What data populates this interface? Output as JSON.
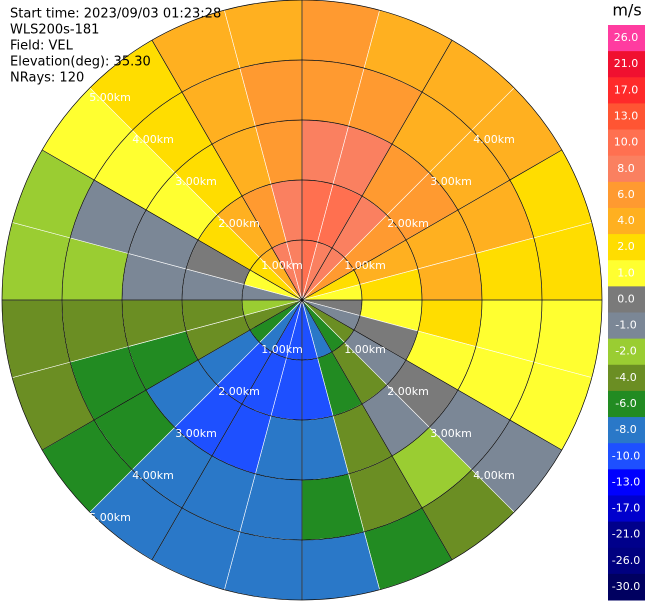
{
  "chart_data": {
    "type": "ppi",
    "header": [
      "Start time: 2023/09/03 01:23:28",
      "WLS200s-181",
      "Field: VEL",
      "Elevation(deg): 35.30",
      "NRays: 120"
    ],
    "azimuths": [
      0,
      15,
      30,
      45,
      60,
      75,
      90,
      105,
      120,
      135,
      150,
      165,
      180,
      195,
      210,
      225,
      240,
      255,
      270,
      285,
      300,
      315,
      330,
      345
    ],
    "ranges_km": [
      0,
      1,
      2,
      3,
      4,
      5
    ],
    "values": [
      [
        10,
        11,
        9,
        7,
        6
      ],
      [
        9,
        10,
        8,
        6,
        5
      ],
      [
        8,
        9,
        7,
        5,
        5
      ],
      [
        6,
        7,
        6,
        5,
        4
      ],
      [
        3,
        5,
        5,
        4,
        3
      ],
      [
        1.5,
        3,
        4,
        3,
        2
      ],
      [
        0.5,
        1.5,
        2,
        1.5,
        1.5
      ],
      [
        -1,
        0.5,
        1.5,
        1,
        1
      ],
      [
        -3,
        -1,
        0.5,
        -0.5,
        -1
      ],
      [
        -5,
        -3,
        -0.5,
        -2,
        -3
      ],
      [
        -8,
        -5,
        -3,
        -4,
        -5
      ],
      [
        -9,
        -9,
        -7,
        -6,
        -7
      ],
      [
        -9,
        -9,
        -8,
        -7,
        -7
      ],
      [
        -9,
        -9,
        -9,
        -7,
        -7
      ],
      [
        -8,
        -9,
        -9,
        -7,
        -7
      ],
      [
        -5,
        -7,
        -7,
        -6,
        -6
      ],
      [
        -3,
        -4,
        -5,
        -5,
        -4
      ],
      [
        -2,
        -3,
        -3,
        -3,
        -3
      ],
      [
        -1,
        -0.5,
        -1,
        -1.5,
        -2
      ],
      [
        1.5,
        0.5,
        -0.5,
        -1,
        -1.5
      ],
      [
        3,
        2,
        1.5,
        1.5,
        1
      ],
      [
        5,
        4,
        3,
        3,
        2.5
      ],
      [
        8,
        6,
        5,
        4,
        4
      ],
      [
        9,
        9,
        7,
        6,
        5
      ]
    ],
    "range_rings": [
      {
        "value": 1,
        "label": "1.00km"
      },
      {
        "value": 2,
        "label": "2.00km"
      },
      {
        "value": 3,
        "label": "3.00km"
      },
      {
        "value": 4,
        "label": "4.00km"
      },
      {
        "value": 5,
        "label": "5.00km"
      }
    ],
    "colorbar_label": "m/s",
    "colorbar_ticks": [
      {
        "value": 26,
        "label": "26.0"
      },
      {
        "value": 21,
        "label": "21.0"
      },
      {
        "value": 17,
        "label": "17.0"
      },
      {
        "value": 13,
        "label": "13.0"
      },
      {
        "value": 10,
        "label": "10.0"
      },
      {
        "value": 8,
        "label": "8.0"
      },
      {
        "value": 6,
        "label": "6.0"
      },
      {
        "value": 4,
        "label": "4.0"
      },
      {
        "value": 2,
        "label": "2.0"
      },
      {
        "value": 1,
        "label": "1.0"
      },
      {
        "value": 0,
        "label": "0.0"
      },
      {
        "value": -1,
        "label": "-1.0"
      },
      {
        "value": -2,
        "label": "-2.0"
      },
      {
        "value": -4,
        "label": "-4.0"
      },
      {
        "value": -6,
        "label": "-6.0"
      },
      {
        "value": -8,
        "label": "-8.0"
      },
      {
        "value": -10,
        "label": "-10.0"
      },
      {
        "value": -13,
        "label": "-13.0"
      },
      {
        "value": -17,
        "label": "-17.0"
      },
      {
        "value": -21,
        "label": "-21.0"
      },
      {
        "value": -26,
        "label": "-26.0"
      },
      {
        "value": -30,
        "label": "-30.0"
      }
    ],
    "colors": [
      "#ff3ca0",
      "#f01030",
      "#ff2a2a",
      "#ff5533",
      "#ff7050",
      "#fa8060",
      "#ff9a30",
      "#ffb020",
      "#ffdd00",
      "#ffff30",
      "#7a7a7a",
      "#7b8796",
      "#9acd32",
      "#6b8e23",
      "#228b22",
      "#2a78c8",
      "#1e50ff",
      "#0000ff",
      "#0000cd",
      "#00008b",
      "#000080",
      "#000060"
    ]
  }
}
